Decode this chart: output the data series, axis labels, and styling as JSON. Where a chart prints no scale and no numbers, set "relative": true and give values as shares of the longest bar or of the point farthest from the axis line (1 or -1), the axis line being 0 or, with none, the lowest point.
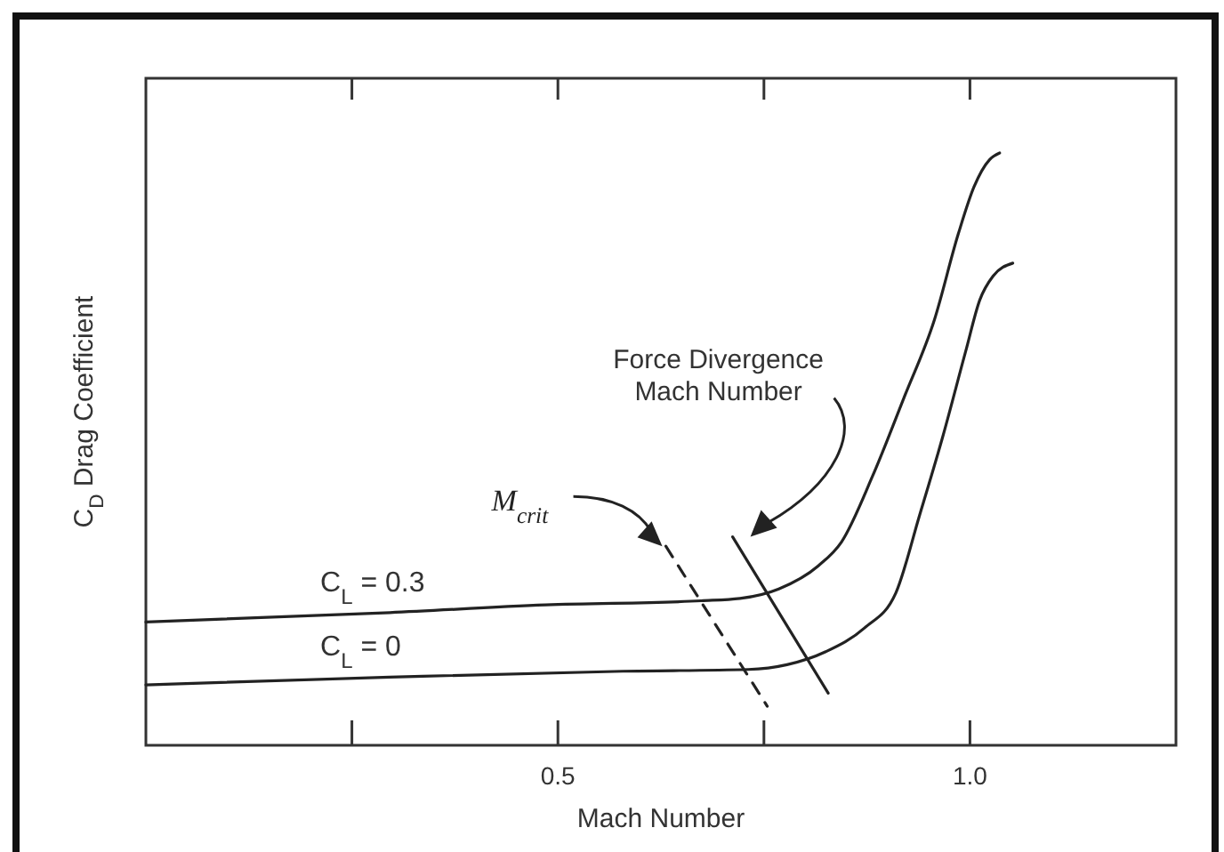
{
  "chart_data": {
    "type": "line",
    "relative": true,
    "xlabel": "Mach Number",
    "ylabel": "C$_{D}$ Drag Coefficient",
    "xlim": [
      0,
      1.25
    ],
    "xticks": [
      {
        "value": 0.25,
        "label": null
      },
      0.5,
      {
        "value": 0.75,
        "label": null
      },
      {
        "value": 1.0,
        "label": "1.0"
      }
    ],
    "line_style": "solid",
    "marker": "none",
    "grid": false,
    "series": [
      {
        "name": "C$_{L}$ = 0.3",
        "color": "#222222",
        "x": [
          0,
          0.296,
          0.485,
          0.674,
          0.721,
          0.768,
          0.816,
          0.844,
          0.882,
          0.92,
          0.957,
          0.986,
          1.005,
          1.024,
          1.036
        ],
        "values": [
          0.208,
          0.224,
          0.237,
          0.244,
          0.248,
          0.264,
          0.303,
          0.343,
          0.455,
          0.587,
          0.719,
          0.864,
          0.943,
          0.989,
          1
        ]
      },
      {
        "name": "C$_{L}$ = 0",
        "color": "#222222",
        "x": [
          0,
          0.296,
          0.579,
          0.731,
          0.778,
          0.825,
          0.872,
          0.91,
          0.939,
          0.967,
          0.995,
          1.012,
          1.028,
          1.052
        ],
        "values": [
          0.102,
          0.115,
          0.125,
          0.128,
          0.136,
          0.158,
          0.198,
          0.257,
          0.389,
          0.521,
          0.666,
          0.752,
          0.792,
          0.814
        ]
      },
      {
        "color": "#222222",
        "line_style": "dashed",
        "x": [
          0.631,
          0.754
        ],
        "values": [
          0.336,
          0.066
        ]
      },
      {
        "color": "#222222",
        "x": [
          0.712,
          0.828
        ],
        "values": [
          0.352,
          0.088
        ]
      }
    ],
    "annotations": [
      "M$_{crit}$",
      "Force Divergence Mach Number"
    ]
  }
}
